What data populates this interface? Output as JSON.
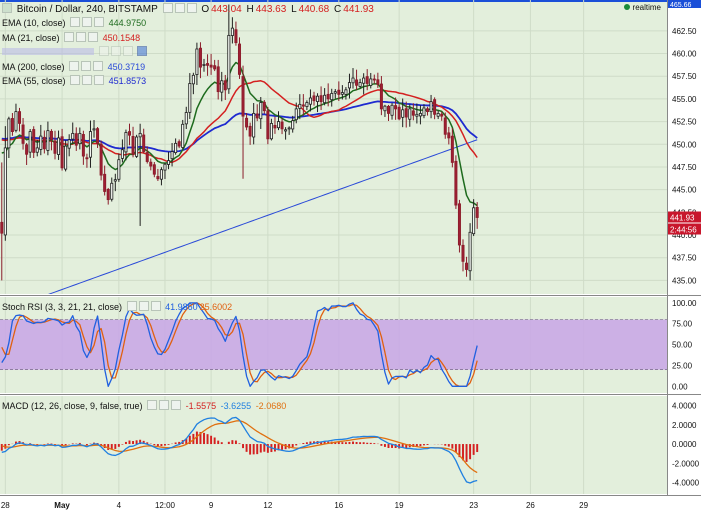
{
  "header": {
    "title": "Bitcoin / Dollar, 240, BITSTAMP",
    "ohlc": [
      {
        "key": "O",
        "value": "443.04"
      },
      {
        "key": "H",
        "value": "443.63"
      },
      {
        "key": "L",
        "value": "440.68"
      },
      {
        "key": "C",
        "value": "441.93"
      }
    ],
    "realtime": "realtime"
  },
  "indicators": [
    {
      "name": "EMA (10, close)",
      "value": "444.9750",
      "color": "#1e6b1e"
    },
    {
      "name": "MA (21, close)",
      "value": "450.1548",
      "color": "#d42020"
    },
    {
      "name": "",
      "value": "",
      "color": "#9a9ad0",
      "faded": true
    },
    {
      "name": "MA (200, close)",
      "value": "450.3719",
      "color": "#2a4ad8"
    },
    {
      "name": "EMA (55, close)",
      "value": "451.8573",
      "color": "#1e2ad0"
    }
  ],
  "price_badges": {
    "top": "465.66",
    "last": "441.93",
    "timer": "2:44:56"
  },
  "rsi": {
    "label": "Stoch RSI (3, 3, 21, 21, close)",
    "k_value": "41.9860",
    "d_value": "25.6002",
    "k_color": "#2060e0",
    "d_color": "#e06010"
  },
  "macd": {
    "label": "MACD (12, 26, close, 9, false, true)",
    "hist_value": "-1.5575",
    "macd_value": "-3.6255",
    "signal_value": "-2.0680",
    "hist_color": "#d42020",
    "macd_color": "#2080e0",
    "signal_color": "#e07010"
  },
  "chart_data": [
    {
      "type": "candlestick",
      "title": "Bitcoin / Dollar, 240, BITSTAMP",
      "x_ticks": [
        "28",
        "May",
        "4",
        "12:00",
        "9",
        "12",
        "16",
        "19",
        "23",
        "26",
        "29"
      ],
      "y_ticks": [
        435.0,
        437.5,
        440.0,
        442.5,
        445.0,
        447.5,
        450.0,
        452.5,
        455.0,
        457.5,
        460.0,
        462.5
      ],
      "ylim": [
        433.5,
        465.9
      ],
      "num_slots": 188,
      "last_bar_index": 134,
      "ohlc_close": [
        440.2,
        449.6,
        452.8,
        451.4,
        453.6,
        452.3,
        450.1,
        448.9,
        451.4,
        449.1,
        449.6,
        450.9,
        449.5,
        451.5,
        450.5,
        449.0,
        450.7,
        447.4,
        449.8,
        450.5,
        451.2,
        449.9,
        451.2,
        448.7,
        448.4,
        451.4,
        451.7,
        450.1,
        446.6,
        444.8,
        443.9,
        445.7,
        446.1,
        448.3,
        449.4,
        451.3,
        451.0,
        448.9,
        450.8,
        451.2,
        449.2,
        448.1,
        447.6,
        446.7,
        446.2,
        447.2,
        447.8,
        448.2,
        449.2,
        450.1,
        449.8,
        452.2,
        453.5,
        456.7,
        457.6,
        460.5,
        458.5,
        458.8,
        458.7,
        458.5,
        458.3,
        455.8,
        457.0,
        456.0,
        462.0,
        462.8,
        461.2,
        457.7,
        453.1,
        451.9,
        450.9,
        453.4,
        452.9,
        454.6,
        453.7,
        450.6,
        452.3,
        451.8,
        452.5,
        451.7,
        451.6,
        451.8,
        452.6,
        453.9,
        454.4,
        454.2,
        454.6,
        455.1,
        454.8,
        455.3,
        454.7,
        455.4,
        455.0,
        455.6,
        455.8,
        455.5,
        455.7,
        456.0,
        456.8,
        457.3,
        456.5,
        456.8,
        457.3,
        456.7,
        457.2,
        457.1,
        456.6,
        453.9,
        454.2,
        453.4,
        454.3,
        453.9,
        452.8,
        453.8,
        453.0,
        453.9,
        453.2,
        453.3,
        453.4,
        454.0,
        453.6,
        454.7,
        453.3,
        453.4,
        453.1,
        451.1,
        450.7,
        448.0,
        443.3,
        438.9,
        437.1,
        436.2,
        440.3,
        443.0,
        441.93
      ],
      "series": [
        {
          "name": "EMA (10, close)",
          "last": 444.975
        },
        {
          "name": "MA (21, close)",
          "last": 450.1548
        },
        {
          "name": "MA (200, close)",
          "last": 450.3719
        },
        {
          "name": "EMA (55, close)",
          "last": 451.8573
        }
      ],
      "last_price": 441.93
    },
    {
      "type": "line",
      "title": "Stoch RSI (3, 3, 21, 21, close)",
      "y_ticks": [
        0.0,
        25.0,
        50.0,
        75.0,
        100.0
      ],
      "ylim": [
        -8,
        107
      ],
      "band": [
        20,
        80
      ],
      "series": [
        {
          "name": "K",
          "last": 41.986
        },
        {
          "name": "D",
          "last": 25.6002
        }
      ]
    },
    {
      "type": "bar",
      "title": "MACD (12, 26, close, 9, false, true)",
      "y_ticks": [
        -4.0,
        -2.0,
        0.0,
        2.0,
        4.0
      ],
      "ylim": [
        -5.2,
        5.0
      ],
      "series": [
        {
          "name": "Histogram",
          "last": -1.5575
        },
        {
          "name": "MACD",
          "last": -3.6255
        },
        {
          "name": "Signal",
          "last": -2.068
        }
      ]
    }
  ]
}
